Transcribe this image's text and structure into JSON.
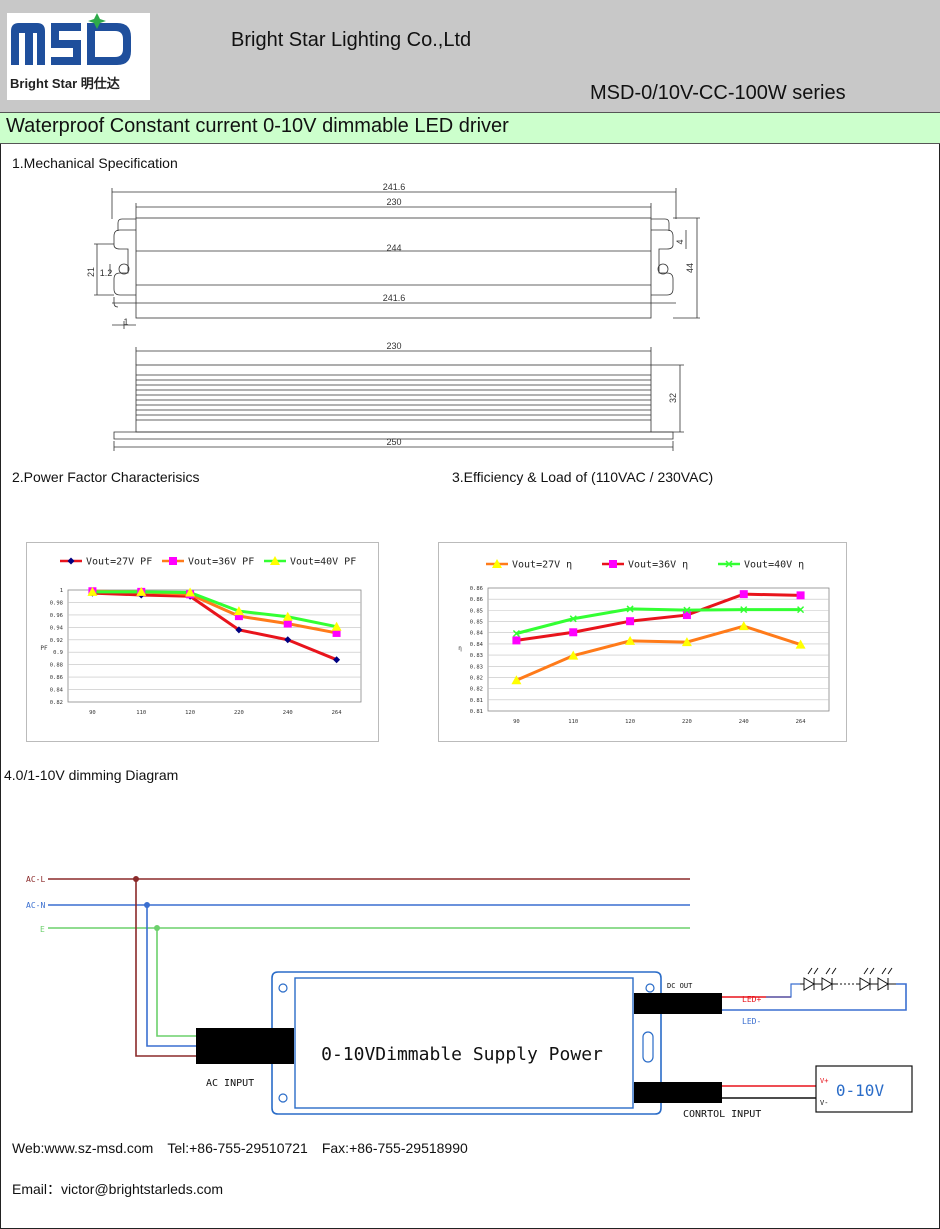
{
  "header": {
    "logo_text": "MSD",
    "logo_sub": "Bright Star 明仕达",
    "company": "Bright Star Lighting Co.,Ltd",
    "series": "MSD-0/10V-CC-100W series"
  },
  "banner": {
    "title": "Waterproof Constant current 0-10V dimmable LED driver"
  },
  "sections": {
    "mechanical": "1.Mechanical Specification",
    "pf": "2.Power Factor Characterisics",
    "eff": "3.Efficiency & Load of (110VAC / 230VAC)",
    "dimming": "4.0/1-10V dimming Diagram"
  },
  "mechanical": {
    "top_dims": [
      "241.6",
      "230",
      "244",
      "241.6"
    ],
    "left_dims": [
      "21",
      "1.2",
      "1"
    ],
    "right_dims": [
      "4",
      "44"
    ],
    "side_dims": [
      "230",
      "32",
      "250"
    ]
  },
  "colors": {
    "red": "#e8141c",
    "magenta": "#ff00ff",
    "green": "#33ff33",
    "orange": "#ff7b1a",
    "yellow": "#ffff00",
    "wire_l": "#8b2a2a",
    "wire_n": "#3a6fd0",
    "wire_e": "#6cd06c",
    "grid": "#c0c0c0"
  },
  "chart_data": [
    {
      "type": "line",
      "categories": [
        "90",
        "110",
        "120",
        "220",
        "240",
        "264"
      ],
      "ylim": [
        0.82,
        1.0
      ],
      "yticks": [
        "0.82",
        "0.84",
        "0.86",
        "0.88",
        "0.9",
        "0.92",
        "0.94",
        "0.96",
        "0.98",
        "1"
      ],
      "ylabel": "PF",
      "series": [
        {
          "name": "Vout=27V PF",
          "values": [
            0.995,
            0.992,
            0.99,
            0.936,
            0.92,
            0.888
          ],
          "color": "#e8141c",
          "marker": "diamond",
          "marker_color": "#000080"
        },
        {
          "name": "Vout=36V PF",
          "values": [
            0.998,
            0.997,
            0.993,
            0.958,
            0.946,
            0.931
          ],
          "color": "#ff7b1a",
          "marker": "square",
          "marker_color": "#ff00ff"
        },
        {
          "name": "Vout=40V PF",
          "values": [
            0.997,
            0.997,
            0.996,
            0.966,
            0.957,
            0.941
          ],
          "color": "#33ff33",
          "marker": "triangle",
          "marker_color": "#ffff00"
        }
      ],
      "grid": true,
      "legend": "top"
    },
    {
      "type": "line",
      "categories": [
        "90",
        "110",
        "120",
        "220",
        "240",
        "264"
      ],
      "ylim": [
        0.81,
        0.86
      ],
      "yticks": [
        "0.81",
        "0.81",
        "0.82",
        "0.82",
        "0.83",
        "0.83",
        "0.84",
        "0.84",
        "0.85",
        "0.85",
        "0.86",
        "0.86"
      ],
      "ylabel": "η",
      "series": [
        {
          "name": "Vout=27V η",
          "values": [
            0.8225,
            0.8325,
            0.8385,
            0.838,
            0.8445,
            0.837
          ],
          "color": "#ff7b1a",
          "marker": "triangle",
          "marker_color": "#ffff00"
        },
        {
          "name": "Vout=36V η",
          "values": [
            0.8387,
            0.842,
            0.8465,
            0.849,
            0.8575,
            0.857
          ],
          "color": "#e8141c",
          "marker": "square",
          "marker_color": "#ff00ff"
        },
        {
          "name": "Vout=40V η",
          "values": [
            0.8415,
            0.8475,
            0.8515,
            0.851,
            0.8512,
            0.8512
          ],
          "color": "#33ff33",
          "marker": "x",
          "marker_color": "#33ff33"
        }
      ],
      "grid": true,
      "legend": "top"
    }
  ],
  "diagram": {
    "ac_l": "AC-L",
    "ac_n": "AC-N",
    "earth": "E",
    "driver_label": "0-10VDimmable Supply Power",
    "ac_input": "AC INPUT",
    "dc_out": "DC OUT",
    "led_plus": "LED+",
    "led_minus": "LED-",
    "control_input": "CONRTOL INPUT",
    "v_plus": "V+",
    "v_minus": "V-",
    "dimmer": "0-10V"
  },
  "footer": {
    "web": "Web:www.sz-msd.com",
    "tel": "Tel:+86-755-29510721",
    "fax": "Fax:+86-755-29518990",
    "email": "Email：victor@brightstarleds.com"
  }
}
